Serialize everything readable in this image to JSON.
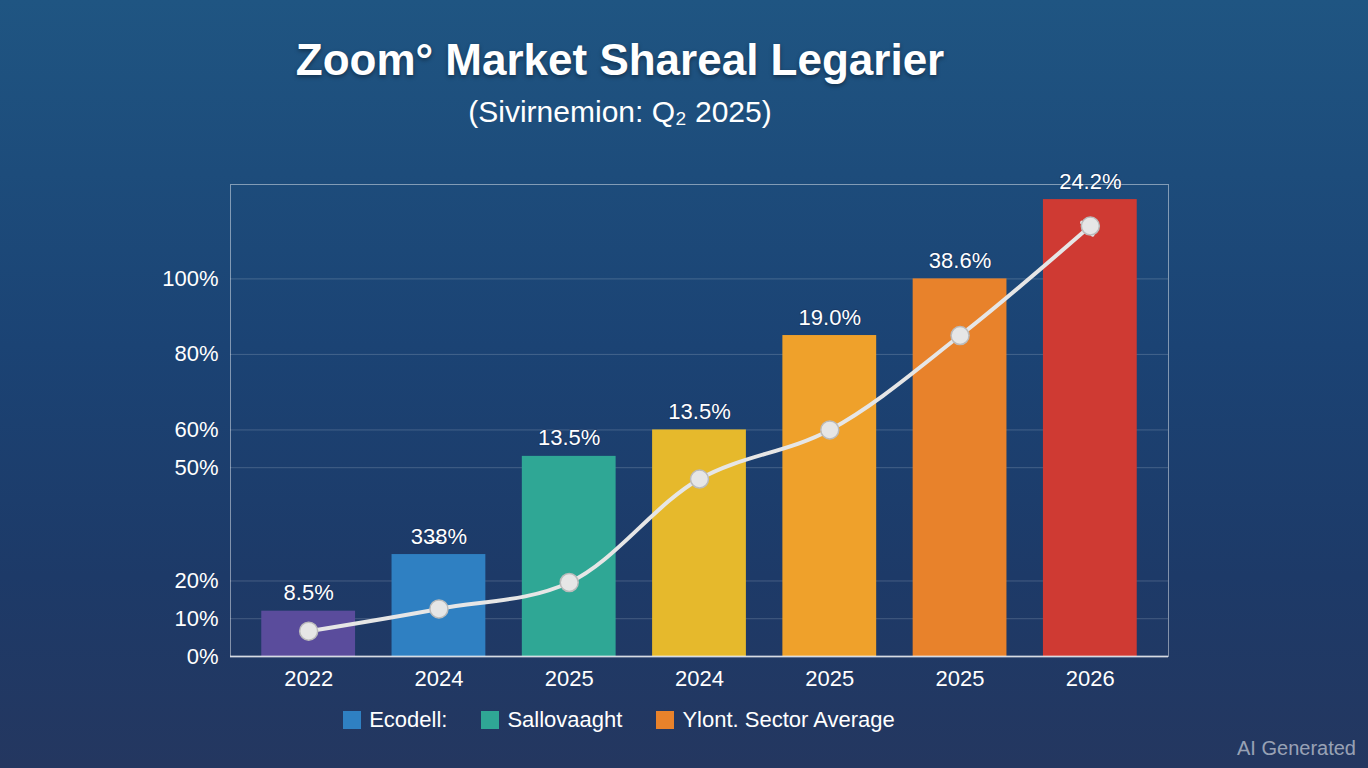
{
  "chart_data": {
    "type": "bar",
    "title": "Zoom° Market Shareal Legarier",
    "subtitle": "(Sivirnemion: Q₂ 2025)",
    "categories": [
      "2022",
      "2024",
      "2025",
      "2024",
      "2025",
      "2025",
      "2026"
    ],
    "values": [
      12,
      27,
      53,
      60,
      85,
      100,
      121
    ],
    "colors": [
      "#5a4c9c",
      "#2f80c2",
      "#2fa795",
      "#e6b92c",
      "#efa12b",
      "#e8822b",
      "#cf3a33"
    ],
    "annotations": [
      "8.5%",
      "33̶8%",
      "13.5%",
      "13.5%",
      "19.0%",
      "38.6%",
      "24.2%"
    ],
    "trend": {
      "type": "line",
      "color": "#e6e6e6",
      "marker": "circle",
      "values": [
        6.7,
        12.6,
        19.6,
        47,
        60,
        85,
        114
      ]
    },
    "ylim": [
      0,
      125
    ],
    "yticks": [
      {
        "value": 0,
        "label": "0%"
      },
      {
        "value": 10,
        "label": "10%"
      },
      {
        "value": 20,
        "label": "20%"
      },
      {
        "value": 50,
        "label": "50%"
      },
      {
        "value": 60,
        "label": "60%"
      },
      {
        "value": 80,
        "label": "80%"
      },
      {
        "value": 100,
        "label": "100%"
      }
    ],
    "grid": true,
    "legend": "bottom",
    "legend_entries": [
      {
        "name": "Ecodell:",
        "color": "#2f80c2"
      },
      {
        "name": "Sallovaaght",
        "color": "#2fa795"
      },
      {
        "name": "Ylont. Sector Average",
        "color": "#e8822b"
      }
    ],
    "watermark": "AI Generated"
  }
}
